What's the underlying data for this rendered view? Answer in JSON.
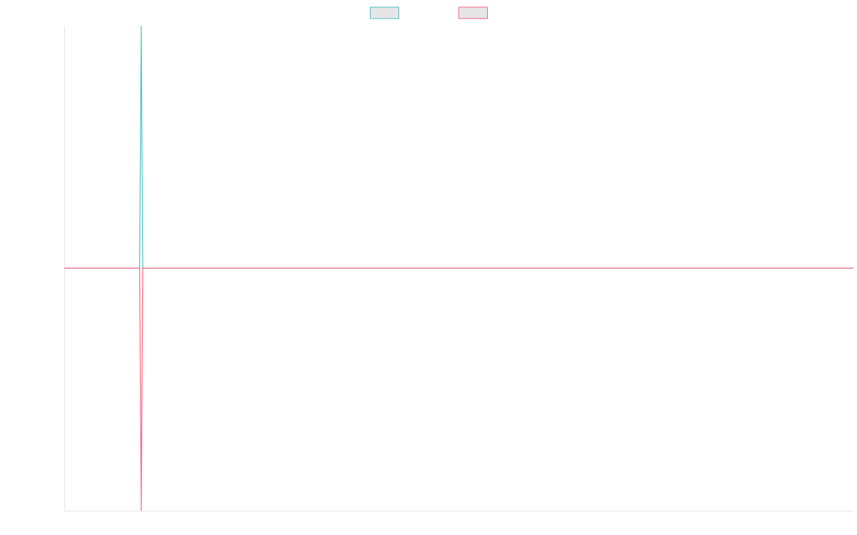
{
  "chart_data": {
    "type": "line",
    "title": "",
    "xlabel": "",
    "ylabel": "",
    "grid": false,
    "legend_placement": "top-center",
    "x_range": [
      0,
      1
    ],
    "y_range": [
      -1,
      1
    ],
    "series": [
      {
        "color": "#4bc0c0",
        "swatch_fill": "#e6e6e6",
        "x": [
          0,
          0.0955,
          0.0975,
          0.0995,
          1
        ],
        "y": [
          0,
          0,
          1,
          0,
          0
        ]
      },
      {
        "color": "#ff6384",
        "swatch_fill": "#e6e6e6",
        "x": [
          0,
          0.0955,
          0.0975,
          0.0995,
          1
        ],
        "y": [
          0,
          0,
          -1,
          0,
          0
        ]
      }
    ]
  }
}
